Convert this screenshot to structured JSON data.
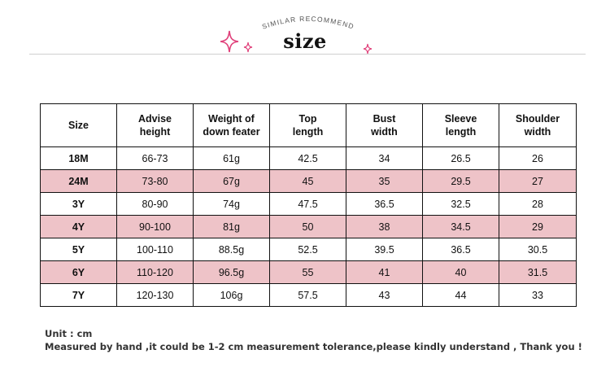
{
  "header": {
    "subtitle": "SIMILAR RECOMMEND",
    "title": "size",
    "accent_color": "#e0407a",
    "icons": [
      "sparkle-icon",
      "sparkle-small-icon",
      "sparkle-small-icon"
    ]
  },
  "table": {
    "headers": [
      [
        "Size"
      ],
      [
        "Advise",
        "height"
      ],
      [
        "Weight of",
        "down feater"
      ],
      [
        "Top",
        "length"
      ],
      [
        "Bust",
        "width"
      ],
      [
        "Sleeve",
        "length"
      ],
      [
        "Shoulder",
        "width"
      ]
    ],
    "rows": [
      {
        "size": "18M",
        "height": "66-73",
        "weight": "61g",
        "top_length": "42.5",
        "bust": "34",
        "sleeve": "26.5",
        "shoulder": "26",
        "highlight": false
      },
      {
        "size": "24M",
        "height": "73-80",
        "weight": "67g",
        "top_length": "45",
        "bust": "35",
        "sleeve": "29.5",
        "shoulder": "27",
        "highlight": true
      },
      {
        "size": "3Y",
        "height": "80-90",
        "weight": "74g",
        "top_length": "47.5",
        "bust": "36.5",
        "sleeve": "32.5",
        "shoulder": "28",
        "highlight": false
      },
      {
        "size": "4Y",
        "height": "90-100",
        "weight": "81g",
        "top_length": "50",
        "bust": "38",
        "sleeve": "34.5",
        "shoulder": "29",
        "highlight": true
      },
      {
        "size": "5Y",
        "height": "100-110",
        "weight": "88.5g",
        "top_length": "52.5",
        "bust": "39.5",
        "sleeve": "36.5",
        "shoulder": "30.5",
        "highlight": false
      },
      {
        "size": "6Y",
        "height": "110-120",
        "weight": "96.5g",
        "top_length": "55",
        "bust": "41",
        "sleeve": "40",
        "shoulder": "31.5",
        "highlight": true
      },
      {
        "size": "7Y",
        "height": "120-130",
        "weight": "106g",
        "top_length": "57.5",
        "bust": "43",
        "sleeve": "44",
        "shoulder": "33",
        "highlight": false
      }
    ],
    "highlight_color": "#eec3c8"
  },
  "notes": {
    "unit": "Unit : cm",
    "disclaimer": "Measured by hand ,it could be 1-2 cm measurement tolerance,please kindly understand , Thank you !"
  }
}
